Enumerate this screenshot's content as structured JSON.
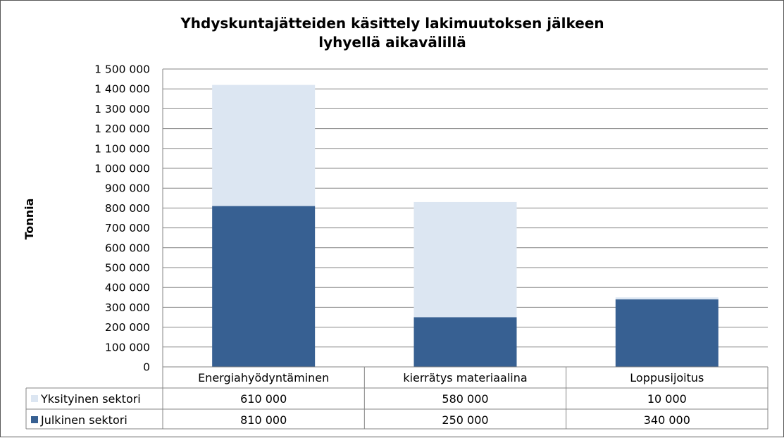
{
  "chart_data": {
    "type": "bar",
    "stacked": true,
    "title_lines": [
      "Yhdyskuntajätteiden käsittely lakimuutoksen jälkeen",
      "lyhyellä aikavälillä"
    ],
    "xlabel": "",
    "ylabel": "Tonnia",
    "categories": [
      "Energiahyödyntäminen",
      "kierrätys materiaalina",
      "Loppusijoitus"
    ],
    "ylim": [
      0,
      1500000
    ],
    "ytick_step": 100000,
    "ytick_labels": [
      "0",
      "100 000",
      "200 000",
      "300 000",
      "400 000",
      "500 000",
      "600 000",
      "700 000",
      "800 000",
      "900 000",
      "1 000 000",
      "1 100 000",
      "1 200 000",
      "1 300 000",
      "1 400 000",
      "1 500 000"
    ],
    "grid": true,
    "legend": "data-table",
    "series": [
      {
        "name": "Yksityinen sektori",
        "color": "#DCE6F2",
        "values": [
          610000,
          580000,
          10000
        ],
        "value_labels": [
          "610 000",
          "580 000",
          "10 000"
        ]
      },
      {
        "name": "Julkinen sektori",
        "color": "#376092",
        "values": [
          810000,
          250000,
          340000
        ],
        "value_labels": [
          "810 000",
          "250 000",
          "340 000"
        ]
      }
    ],
    "stack_order": [
      "Julkinen sektori",
      "Yksityinen sektori"
    ]
  }
}
